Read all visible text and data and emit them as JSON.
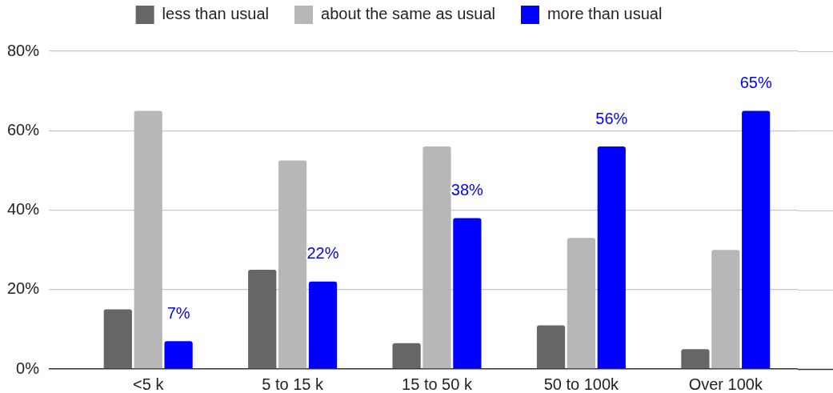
{
  "chart_data": {
    "type": "bar",
    "categories": [
      "<5 k",
      "5 to 15 k",
      "15 to 50 k",
      "50 to 100k",
      "Over 100k"
    ],
    "series": [
      {
        "name": "less than usual",
        "color": "#666666",
        "values": [
          15,
          25,
          6.5,
          11,
          5
        ]
      },
      {
        "name": "about the same as usual",
        "color": "#b7b7b7",
        "values": [
          65,
          52.5,
          56,
          33,
          30
        ]
      },
      {
        "name": "more than usual",
        "color": "#0000ff",
        "values": [
          7,
          22,
          38,
          56,
          65
        ],
        "value_labels": [
          "7%",
          "22%",
          "38%",
          "56%",
          "65%"
        ]
      }
    ],
    "ylim": [
      0,
      80
    ],
    "yticks": [
      {
        "value": 0,
        "label": "0%"
      },
      {
        "value": 20,
        "label": "20%"
      },
      {
        "value": 40,
        "label": "40%"
      },
      {
        "value": 60,
        "label": "60%"
      },
      {
        "value": 80,
        "label": "80%"
      }
    ],
    "grid": "y",
    "legend": "top"
  }
}
